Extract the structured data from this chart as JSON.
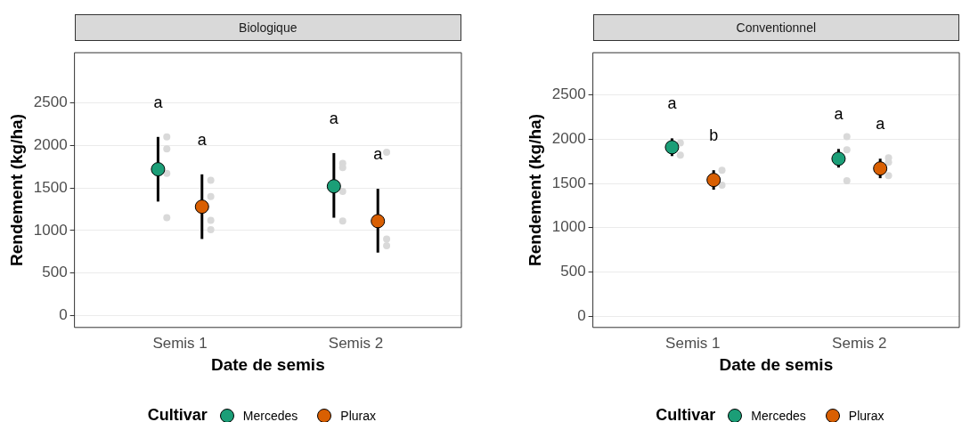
{
  "chart_data": [
    {
      "type": "scatter",
      "title": "Biologique",
      "xlabel": "Date de semis",
      "ylabel": "Rendement (kg/ha)",
      "legend_title": "Cultivar",
      "legend": "bottom",
      "grid": "y",
      "marker": "circle",
      "categories": [
        "Semis 1",
        "Semis 2"
      ],
      "ylim": [
        -140,
        3090
      ],
      "yticks": [
        0,
        500,
        1000,
        1500,
        2000,
        2500
      ],
      "series": [
        {
          "name": "Mercedes",
          "color": "#1b9e77",
          "values": [
            1720,
            1520
          ],
          "errors": [
            [
              1340,
              2100
            ],
            [
              1150,
              1910
            ]
          ]
        },
        {
          "name": "Plurax",
          "color": "#d95f02",
          "values": [
            1280,
            1110
          ],
          "errors": [
            [
              900,
              1660
            ],
            [
              740,
              1490
            ]
          ]
        },
        {
          "color": "#d9d9d9",
          "x": [
            "Semis 1",
            "Semis 1",
            "Semis 1",
            "Semis 1",
            "Semis 2",
            "Semis 2",
            "Semis 2",
            "Semis 2"
          ],
          "values": [
            2100,
            1960,
            1670,
            1150,
            1790,
            1740,
            1460,
            1110
          ]
        },
        {
          "color": "#d9d9d9",
          "x": [
            "Semis 1",
            "Semis 1",
            "Semis 1",
            "Semis 1",
            "Semis 2",
            "Semis 2",
            "Semis 2"
          ],
          "values": [
            1590,
            1400,
            1120,
            1010,
            1920,
            900,
            820
          ]
        }
      ],
      "annotations": [
        "a",
        "a",
        "a",
        "a"
      ]
    },
    {
      "type": "scatter",
      "title": "Conventionnel",
      "xlabel": "Date de semis",
      "ylabel": "Rendement (kg/ha)",
      "legend_title": "Cultivar",
      "legend": "bottom",
      "grid": "y",
      "marker": "circle",
      "categories": [
        "Semis 1",
        "Semis 2"
      ],
      "ylim": [
        -127,
        2978
      ],
      "yticks": [
        0,
        500,
        1000,
        1500,
        2000,
        2500
      ],
      "series": [
        {
          "name": "Mercedes",
          "color": "#1b9e77",
          "values": [
            1910,
            1780
          ],
          "errors": [
            [
              1810,
              2010
            ],
            [
              1680,
              1890
            ]
          ]
        },
        {
          "name": "Plurax",
          "color": "#d95f02",
          "values": [
            1540,
            1670
          ],
          "errors": [
            [
              1430,
              1650
            ],
            [
              1560,
              1780
            ]
          ]
        },
        {
          "color": "#d9d9d9",
          "x": [
            "Semis 1",
            "Semis 1",
            "Semis 2",
            "Semis 2",
            "Semis 2"
          ],
          "values": [
            1960,
            1820,
            2030,
            1880,
            1530
          ]
        },
        {
          "color": "#d9d9d9",
          "x": [
            "Semis 1",
            "Semis 1",
            "Semis 2",
            "Semis 2",
            "Semis 2"
          ],
          "values": [
            1650,
            1480,
            1790,
            1740,
            1590
          ]
        }
      ],
      "annotations": [
        "a",
        "b",
        "a",
        "a"
      ]
    }
  ]
}
